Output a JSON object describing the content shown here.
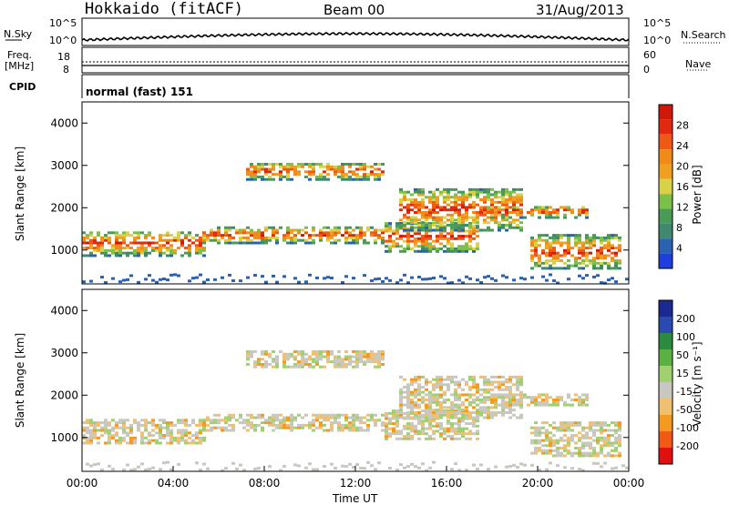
{
  "header": {
    "station": "Hokkaido (fitACF)",
    "beam": "Beam 00",
    "date": "31/Aug/2013"
  },
  "noise_panel": {
    "left_label": "N.Sky",
    "right_label": "N.Search",
    "tick_top": "10^5",
    "tick_bottom": "10^0"
  },
  "freq_panel": {
    "left_label_1": "Freq.",
    "left_label_2": "[MHz]",
    "right_label": "Nave",
    "left_tick_top": "18",
    "left_tick_bottom": "8",
    "right_tick_top": "60",
    "right_tick_bottom": "0"
  },
  "cpid_panel": {
    "label": "CPID",
    "mode": "normal (fast) 151"
  },
  "colors": {
    "power_scale": [
      "#1f3fdc",
      "#2a62b0",
      "#3f8a6e",
      "#4a9a5a",
      "#7cc04a",
      "#d7d24a",
      "#f0a020",
      "#f08a1a",
      "#ee5a16",
      "#e02a10",
      "#d01808"
    ],
    "velocity_scale": [
      "#e01010",
      "#ef5a14",
      "#f39a22",
      "#f0c070",
      "#c8c8c0",
      "#a0d070",
      "#5ab040",
      "#2a8a40",
      "#2a4ab0",
      "#1a2a90"
    ]
  },
  "chart_data": [
    {
      "type": "heatmap",
      "name": "power",
      "ylabel": "Slant Range [km]",
      "ylim": [
        200,
        4500
      ],
      "y_ticks": [
        "1000",
        "2000",
        "3000",
        "4000"
      ],
      "colorbar": {
        "label": "Power [dB]",
        "ticks": [
          "28",
          "24",
          "20",
          "16",
          "12",
          "8",
          "4"
        ]
      }
    },
    {
      "type": "heatmap",
      "name": "velocity",
      "ylabel": "Slant Range [km]",
      "ylim": [
        200,
        4500
      ],
      "y_ticks": [
        "1000",
        "2000",
        "3000",
        "4000"
      ],
      "xlabel": "Time UT",
      "x_ticks": [
        "00:00",
        "04:00",
        "08:00",
        "12:00",
        "16:00",
        "20:00",
        "00:00"
      ],
      "colorbar": {
        "label": "Velocity [m s⁻¹]",
        "ticks": [
          "200",
          "100",
          "50",
          "15",
          "-15",
          "-50",
          "-100",
          "-200"
        ]
      }
    }
  ]
}
